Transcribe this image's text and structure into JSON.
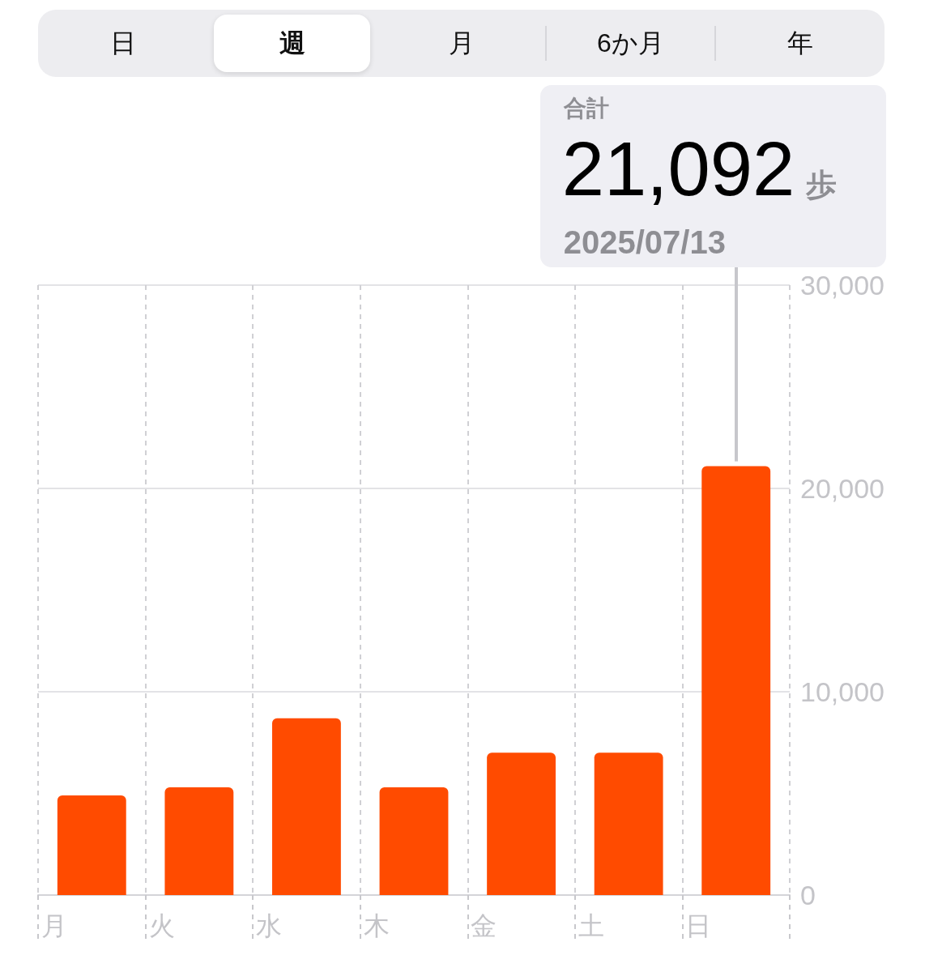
{
  "chart_data": {
    "type": "bar",
    "categories": [
      "月",
      "火",
      "水",
      "木",
      "金",
      "土",
      "日"
    ],
    "values": [
      4900,
      5300,
      8700,
      5300,
      7000,
      7000,
      21092
    ],
    "color": "#ff4b00",
    "ylim": [
      0,
      30000
    ],
    "yticks": [
      0,
      {
        "value": 10000,
        "label": "10,000"
      },
      {
        "value": 20000,
        "label": "20,000"
      },
      {
        "value": 30000,
        "label": "30,000"
      }
    ],
    "grid": true,
    "annotations": [
      "日",
      "週",
      "月",
      "6か月",
      "年",
      "合計",
      "21,092",
      "歩",
      "2025/07/13"
    ]
  }
}
